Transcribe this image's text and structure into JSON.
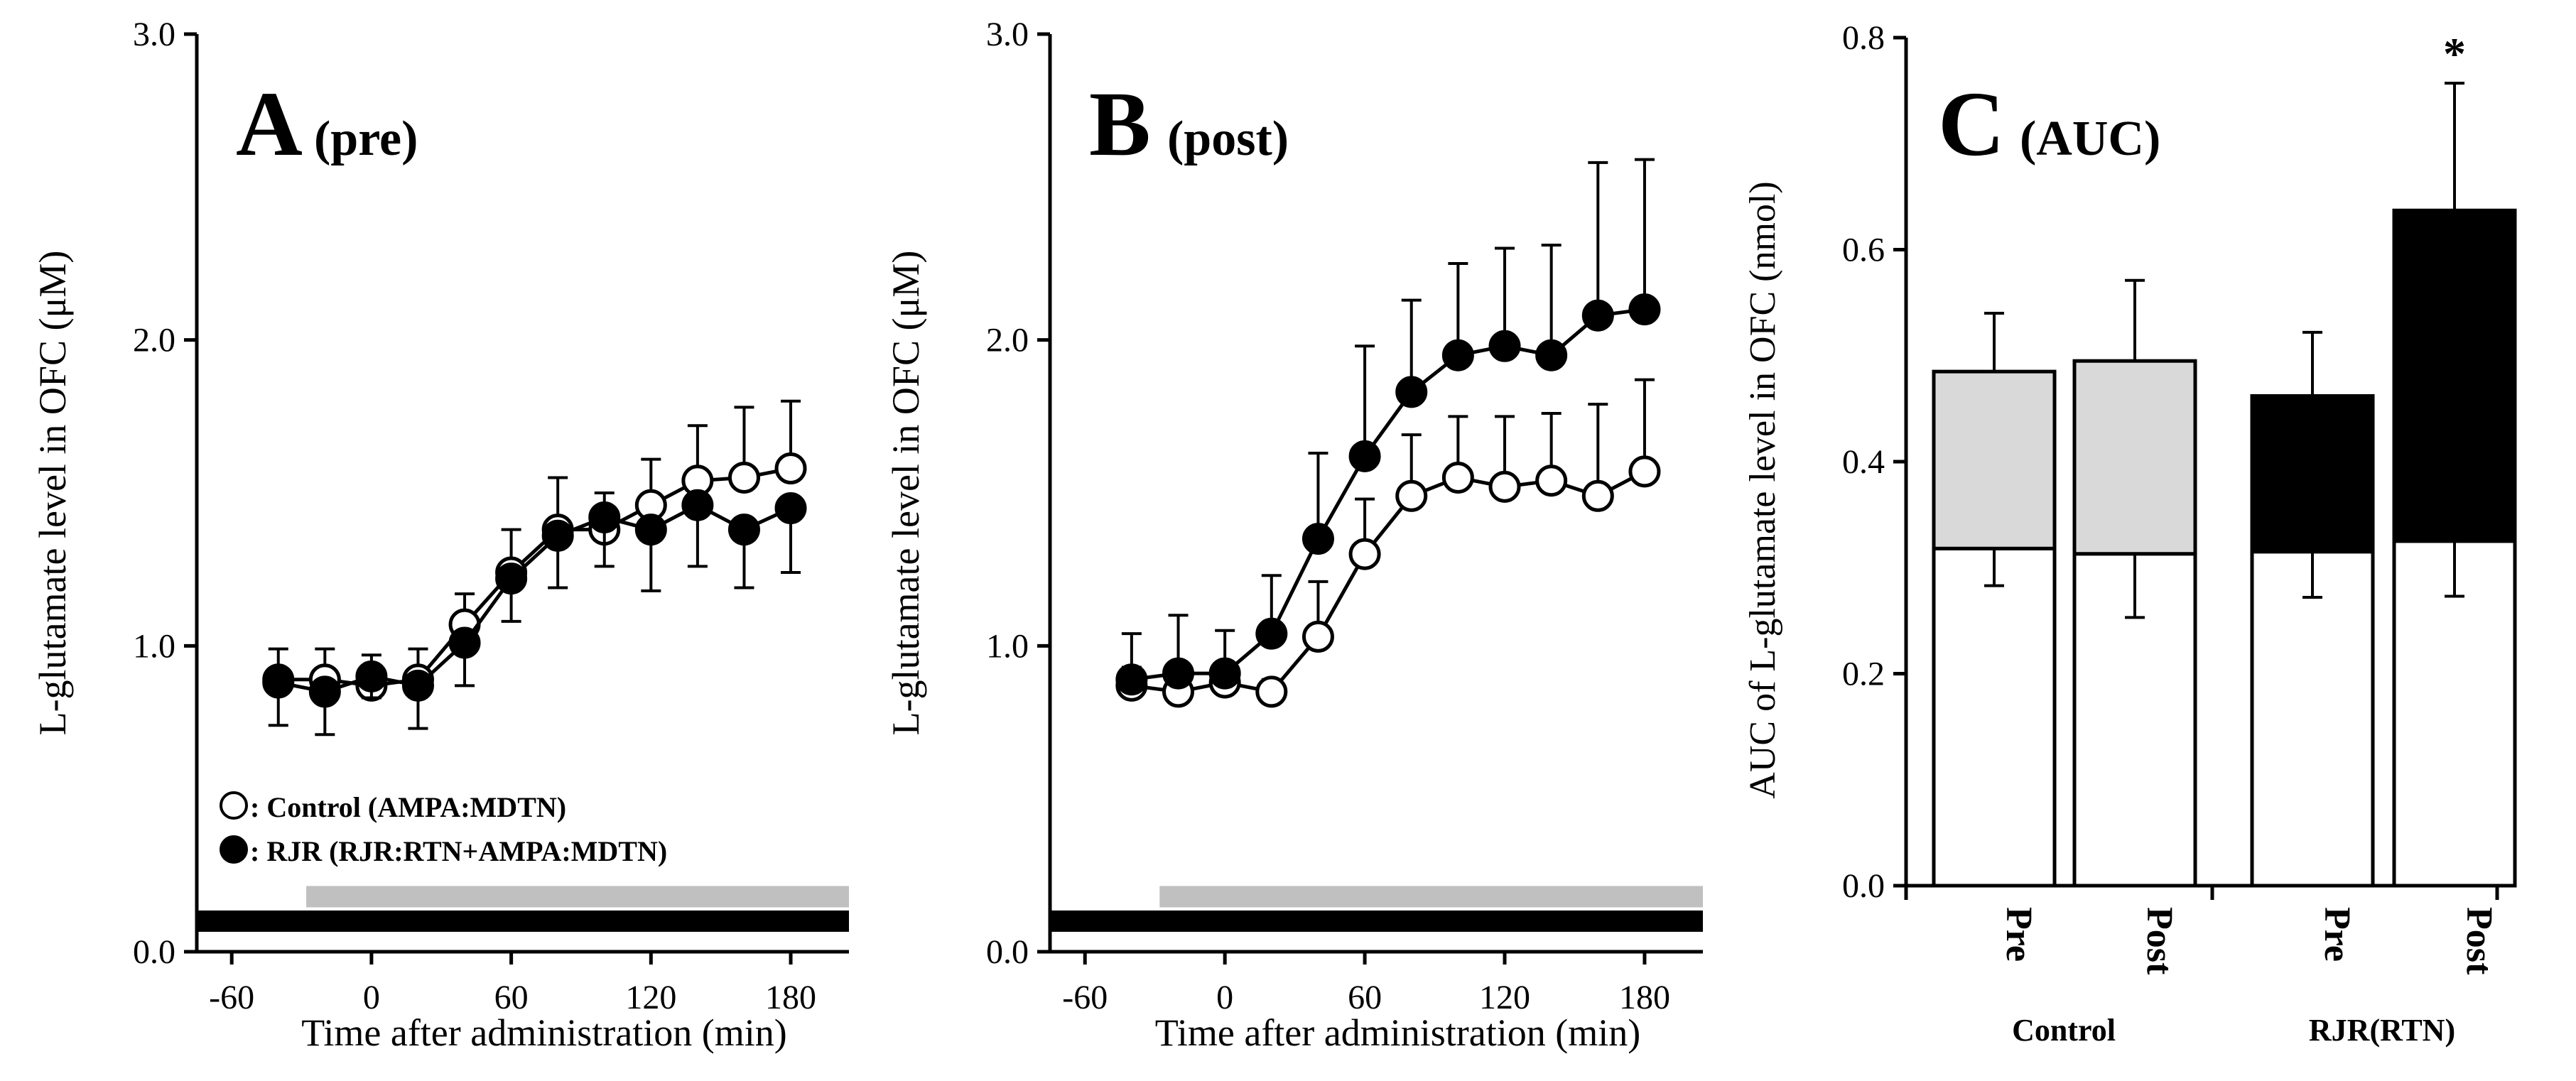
{
  "chart_data": [
    {
      "type": "line",
      "panel_label": "A",
      "title": "(pre)",
      "ylabel": "L-glutamate level in OFC (μM)",
      "xlabel": "Time after administration (min)",
      "xlim": [
        -75,
        205
      ],
      "ylim": [
        0,
        3.0
      ],
      "xticks": [
        "-60",
        "0",
        "60",
        "120",
        "180"
      ],
      "xtick_values": [
        -60,
        0,
        60,
        120,
        180
      ],
      "yticks": [
        "0.0",
        "1.0",
        "2.0",
        "3.0"
      ],
      "ytick_values": [
        0,
        1,
        2,
        3
      ],
      "x": [
        -40,
        -20,
        0,
        20,
        40,
        60,
        80,
        100,
        120,
        140,
        160,
        180
      ],
      "series": [
        {
          "name": "Control (AMPA:MDTN)",
          "marker": "open-circle",
          "values": [
            0.89,
            0.89,
            0.87,
            0.89,
            1.07,
            1.24,
            1.38,
            1.38,
            1.46,
            1.54,
            1.55,
            1.58
          ],
          "errors": [
            0.1,
            0.1,
            0.1,
            0.1,
            0.1,
            0.14,
            0.17,
            0.12,
            0.15,
            0.18,
            0.23,
            0.22
          ]
        },
        {
          "name": "RJR (RJR:RTN+AMPA:MDTN)",
          "marker": "filled-circle",
          "values": [
            0.88,
            0.85,
            0.9,
            0.87,
            1.01,
            1.22,
            1.36,
            1.42,
            1.38,
            1.46,
            1.38,
            1.45
          ],
          "errors": [
            0.14,
            0.14,
            0.07,
            0.14,
            0.14,
            0.14,
            0.17,
            0.16,
            0.2,
            0.2,
            0.19,
            0.21
          ]
        }
      ],
      "legend": [
        {
          "symbol": "○",
          "label": ": Control (AMPA:MDTN)"
        },
        {
          "symbol": "●",
          "label": ": RJR (RJR:RTN+AMPA:MDTN)"
        }
      ],
      "bars": [
        {
          "color": "#c0c0c0",
          "from": -28,
          "to": 205,
          "level": 0.18
        },
        {
          "color": "#000000",
          "from": -75,
          "to": 205,
          "level": 0.1
        }
      ]
    },
    {
      "type": "line",
      "panel_label": "B",
      "title": "(post)",
      "ylabel": "L-glutamate level in OFC (μM)",
      "xlabel": "Time after administration (min)",
      "xlim": [
        -75,
        205
      ],
      "ylim": [
        0,
        3.0
      ],
      "xticks": [
        "-60",
        "0",
        "60",
        "120",
        "180"
      ],
      "xtick_values": [
        -60,
        0,
        60,
        120,
        180
      ],
      "yticks": [
        "0.0",
        "1.0",
        "2.0",
        "3.0"
      ],
      "ytick_values": [
        0,
        1,
        2,
        3
      ],
      "x": [
        -40,
        -20,
        0,
        20,
        40,
        60,
        80,
        100,
        120,
        140,
        160,
        180
      ],
      "series": [
        {
          "name": "Control",
          "marker": "open-circle",
          "values": [
            0.87,
            0.85,
            0.88,
            0.85,
            1.03,
            1.3,
            1.49,
            1.55,
            1.52,
            1.54,
            1.49,
            1.57
          ],
          "errors": [
            0.06,
            0.05,
            0.06,
            0.04,
            0.18,
            0.18,
            0.2,
            0.2,
            0.23,
            0.22,
            0.3,
            0.3
          ]
        },
        {
          "name": "RJR",
          "marker": "filled-circle",
          "values": [
            0.89,
            0.91,
            0.91,
            1.04,
            1.35,
            1.62,
            1.83,
            1.95,
            1.98,
            1.95,
            2.08,
            2.1
          ],
          "errors": [
            0.15,
            0.19,
            0.14,
            0.19,
            0.28,
            0.36,
            0.3,
            0.3,
            0.32,
            0.36,
            0.5,
            0.49
          ]
        }
      ],
      "bars": [
        {
          "color": "#c0c0c0",
          "from": -28,
          "to": 205,
          "level": 0.18
        },
        {
          "color": "#000000",
          "from": -75,
          "to": 205,
          "level": 0.1
        }
      ]
    },
    {
      "type": "bar",
      "panel_label": "C",
      "title": "(AUC)",
      "ylabel": "AUC of L-glutamate level in OFC (nmol)",
      "ylim": [
        0,
        0.8
      ],
      "yticks": [
        "0.0",
        "0.2",
        "0.4",
        "0.6",
        "0.8"
      ],
      "ytick_values": [
        0,
        0.2,
        0.4,
        0.6,
        0.8
      ],
      "categories": [
        "Pre",
        "Post",
        "Pre",
        "Post"
      ],
      "groups": [
        "Control",
        "RJR(RTN)"
      ],
      "baseline_values": [
        0.318,
        0.313,
        0.315,
        0.325
      ],
      "baseline_errors": [
        0.035,
        0.06,
        0.043,
        0.052
      ],
      "total_values": [
        0.485,
        0.495,
        0.462,
        0.637
      ],
      "total_errors": [
        0.055,
        0.076,
        0.06,
        0.12
      ],
      "top_colors": [
        "#d9d9d9",
        "#d9d9d9",
        "#000000",
        "#000000"
      ],
      "significance": [
        "",
        "",
        "",
        "*"
      ]
    }
  ]
}
